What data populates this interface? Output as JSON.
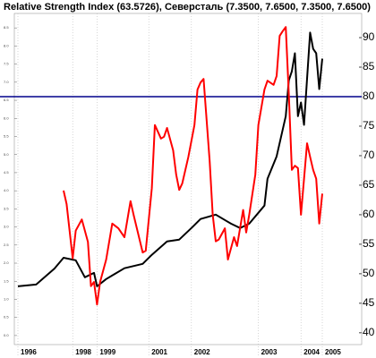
{
  "chart_data": {
    "type": "line",
    "title": "Relative Strength Index (63.5726), Северсталь (7.3500, 7.6500, 7.3500, 7.6500)",
    "xlim": [
      0,
      108
    ],
    "xticks": [
      {
        "value": 0,
        "label": "1996"
      },
      {
        "value": 18,
        "label": "1998"
      },
      {
        "value": 26,
        "label": "1999"
      },
      {
        "value": 43,
        "label": "2001"
      },
      {
        "value": 57,
        "label": "2002"
      },
      {
        "value": 79,
        "label": "2003"
      },
      {
        "value": 93,
        "label": "2004"
      },
      {
        "value": 100,
        "label": "2005"
      }
    ],
    "ylim": [
      -0.25,
      8.9
    ],
    "yticks": [
      {
        "value": 0,
        "label": "0.0"
      },
      {
        "value": 0.5,
        "label": "0.5"
      },
      {
        "value": 1,
        "label": "1.0"
      },
      {
        "value": 1.5,
        "label": "1.5"
      },
      {
        "value": 2,
        "label": "2.0"
      },
      {
        "value": 2.5,
        "label": "2.5"
      },
      {
        "value": 3,
        "label": "3.0"
      },
      {
        "value": 3.5,
        "label": "3.5"
      },
      {
        "value": 4,
        "label": "4.0"
      },
      {
        "value": 4.5,
        "label": "4.5"
      },
      {
        "value": 5,
        "label": "5.0"
      },
      {
        "value": 5.5,
        "label": "5.5"
      },
      {
        "value": 6,
        "label": "6.0"
      },
      {
        "value": 6.5,
        "label": "6.5"
      },
      {
        "value": 7,
        "label": "7.0"
      },
      {
        "value": 7.5,
        "label": "7.5"
      },
      {
        "value": 8,
        "label": "8.0"
      },
      {
        "value": 8.5,
        "label": "8.5"
      }
    ],
    "y2lim": [
      38,
      94.1
    ],
    "y2ticks": [
      40,
      45,
      50,
      55,
      60,
      65,
      70,
      75,
      80,
      85,
      90
    ],
    "grid": true,
    "level": {
      "value": 80,
      "color": "#00008b",
      "axis": "y2"
    },
    "series": [
      {
        "name": "Северсталь",
        "color": "#000000",
        "x": [
          0,
          6,
          12,
          15,
          19,
          22,
          25,
          26,
          29,
          35,
          41,
          44,
          49,
          53,
          57,
          60,
          65,
          70,
          73,
          76,
          81,
          82,
          85,
          88,
          89,
          90,
          91,
          92,
          93,
          94,
          96,
          97,
          98,
          99,
          100
        ],
        "values": [
          1.36,
          1.41,
          1.85,
          2.15,
          2.08,
          1.61,
          1.73,
          1.36,
          1.56,
          1.86,
          1.98,
          2.23,
          2.6,
          2.65,
          2.97,
          3.22,
          3.34,
          3.09,
          2.97,
          3.09,
          3.59,
          4.33,
          4.95,
          6.06,
          7.05,
          7.3,
          7.8,
          6.06,
          6.44,
          5.82,
          8.37,
          7.92,
          7.8,
          6.81,
          7.65
        ]
      },
      {
        "name": "Relative Strength Index",
        "color": "#ff0000",
        "axis": "y2",
        "x": [
          15,
          16,
          18,
          19,
          21,
          23,
          24,
          25,
          26,
          27,
          29,
          31,
          33,
          35,
          37,
          38,
          41,
          42,
          44,
          45,
          47,
          48,
          49,
          51,
          52,
          53,
          54,
          56,
          58,
          59,
          60,
          61,
          63,
          64,
          65,
          66,
          68,
          69,
          71,
          72,
          74,
          75,
          76,
          78,
          79,
          81,
          82,
          84,
          85,
          86,
          87,
          88,
          89,
          90,
          91,
          92,
          93,
          95,
          96,
          97,
          98,
          99,
          100
        ],
        "values": [
          64.1,
          61.8,
          52.6,
          57.3,
          59.2,
          55.4,
          47.9,
          48.6,
          44.8,
          48.6,
          52.4,
          58.5,
          57.7,
          56.2,
          62.3,
          60,
          53.6,
          53.9,
          64.5,
          75.2,
          72.9,
          73.2,
          74.7,
          70.9,
          66.8,
          64.2,
          65.3,
          69.8,
          75.2,
          81.2,
          82.4,
          83,
          69.1,
          60,
          55.5,
          55.8,
          57.7,
          52.4,
          56.2,
          54.7,
          60.8,
          57,
          60,
          66.8,
          75.2,
          81.2,
          82.7,
          82,
          83.5,
          90.3,
          91.1,
          91.8,
          80.5,
          67.6,
          68.3,
          67.9,
          60,
          72.1,
          69.8,
          67.6,
          66.1,
          58.5,
          63.57
        ]
      }
    ]
  }
}
